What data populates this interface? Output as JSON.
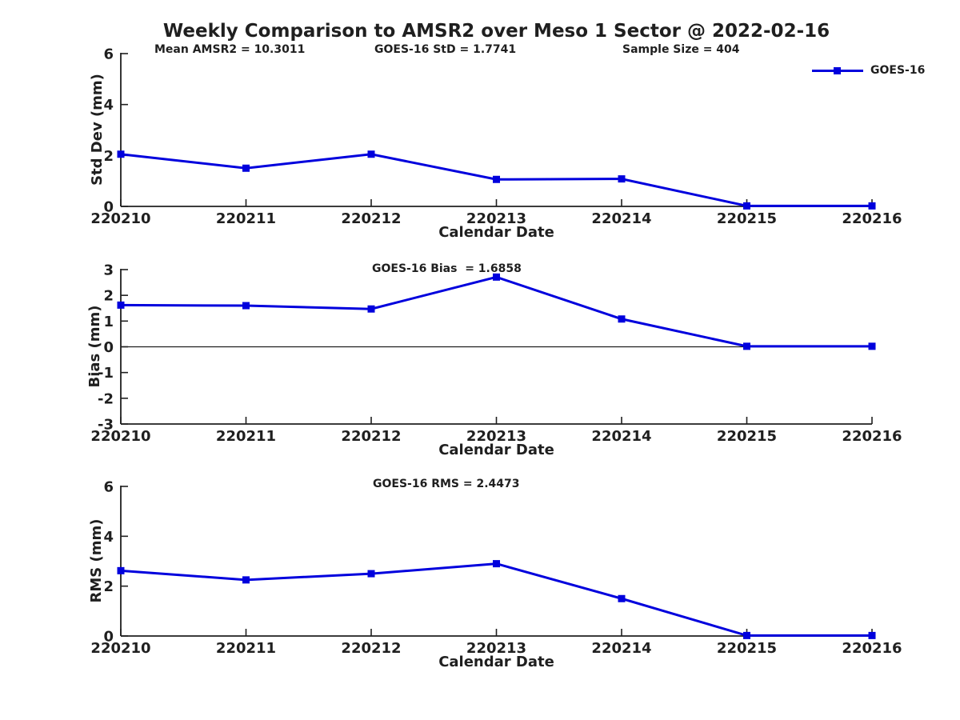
{
  "figure": {
    "title": "Weekly Comparison to AMSR2 over Meso 1 Sector @ 2022-02-16",
    "legend_label": "GOES-16",
    "colors": {
      "line": "#0000dd",
      "axis": "#1f1f1f",
      "background": "#ffffff"
    }
  },
  "chart_data": [
    {
      "type": "line",
      "name": "std-dev",
      "ylabel": "Std Dev (mm)",
      "xlabel": "Calendar Date",
      "categories": [
        "220210",
        "220211",
        "220212",
        "220213",
        "220214",
        "220215",
        "220216"
      ],
      "series": [
        {
          "name": "GOES-16",
          "values": [
            2.05,
            1.5,
            2.05,
            1.06,
            1.08,
            0.02,
            0.02
          ]
        }
      ],
      "ylim": [
        0,
        6
      ],
      "yticks": [
        0,
        2,
        4,
        6
      ],
      "grid": false,
      "annotations": [
        "Mean AMSR2 = 10.3011",
        "GOES-16 StD = 1.7741",
        "Sample Size = 404"
      ],
      "legend": {
        "label": "GOES-16",
        "position": "top-right"
      }
    },
    {
      "type": "line",
      "name": "bias",
      "title": "GOES-16 Bias  = 1.6858",
      "ylabel": "Bias (mm)",
      "xlabel": "Calendar Date",
      "categories": [
        "220210",
        "220211",
        "220212",
        "220213",
        "220214",
        "220215",
        "220216"
      ],
      "series": [
        {
          "name": "GOES-16",
          "values": [
            1.62,
            1.6,
            1.47,
            2.71,
            1.08,
            0.02,
            0.02
          ]
        }
      ],
      "ylim": [
        -3,
        3
      ],
      "yticks": [
        -3,
        -2,
        -1,
        0,
        1,
        2,
        3
      ],
      "zero_line": true,
      "grid": false
    },
    {
      "type": "line",
      "name": "rms",
      "title": "GOES-16 RMS = 2.4473",
      "ylabel": "RMS (mm)",
      "xlabel": "Calendar Date",
      "categories": [
        "220210",
        "220211",
        "220212",
        "220213",
        "220214",
        "220215",
        "220216"
      ],
      "series": [
        {
          "name": "GOES-16",
          "values": [
            2.62,
            2.25,
            2.5,
            2.9,
            1.5,
            0.02,
            0.02
          ]
        }
      ],
      "ylim": [
        0,
        6
      ],
      "yticks": [
        0,
        2,
        4,
        6
      ],
      "grid": false
    }
  ]
}
